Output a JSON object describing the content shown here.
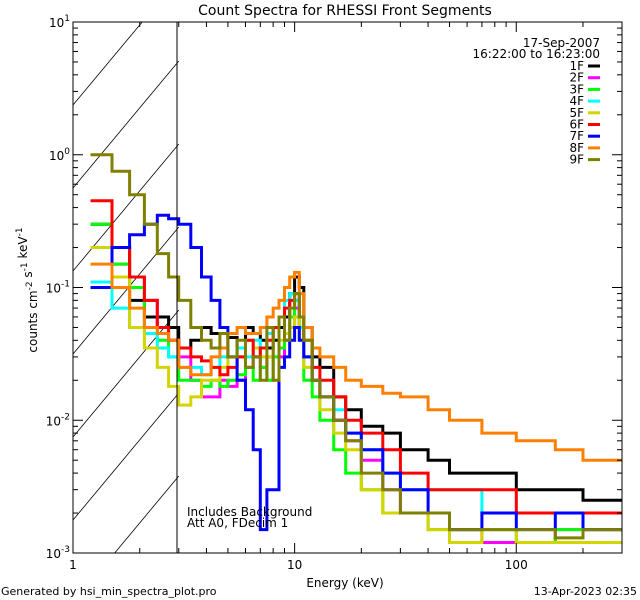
{
  "chart_data": {
    "type": "line",
    "title": "Count Spectra for RHESSI Front Segments",
    "xlabel": "Energy (keV)",
    "ylabel": "counts cm-2 s-1 keV-1",
    "xscale": "log",
    "yscale": "log",
    "xlim": [
      1,
      300
    ],
    "ylim": [
      0.001,
      10
    ],
    "x_tick_labels": [
      "1",
      "10",
      "100"
    ],
    "x_tick_values": [
      1,
      10,
      100
    ],
    "y_tick_values": [
      10,
      1,
      0.1,
      0.01,
      0.001
    ],
    "y_tick_labels": [
      {
        "base": "10",
        "exp": "1"
      },
      {
        "base": "10",
        "exp": "0"
      },
      {
        "base": "10",
        "exp": "-1"
      },
      {
        "base": "10",
        "exp": "-2"
      },
      {
        "base": "10",
        "exp": "-3"
      }
    ],
    "hatched_region_keV": [
      1,
      3
    ],
    "date": "17-Sep-2007",
    "time_range": "16:22:00 to 16:23:00",
    "annotations": [
      "Includes Background",
      "Att A0, FDecim 1"
    ],
    "legend_placement": "top-right",
    "energy_edges": [
      1.2,
      1.5,
      1.8,
      2.1,
      2.4,
      2.7,
      3.0,
      3.4,
      3.8,
      4.2,
      4.6,
      5.0,
      5.5,
      6.0,
      6.5,
      7.0,
      7.5,
      8.0,
      8.5,
      9.0,
      9.5,
      10.0,
      10.5,
      11,
      12,
      13,
      15,
      17,
      20,
      25,
      30,
      40,
      50,
      70,
      100,
      150,
      200,
      300
    ],
    "series": [
      {
        "name": "1F",
        "color": "#000000",
        "values": [
          0.3,
          0.2,
          0.08,
          0.06,
          0.06,
          0.05,
          0.035,
          0.04,
          0.05,
          0.045,
          0.045,
          0.042,
          0.035,
          0.05,
          0.045,
          0.04,
          0.035,
          0.04,
          0.05,
          0.06,
          0.09,
          0.12,
          0.1,
          0.05,
          0.03,
          0.025,
          0.015,
          0.012,
          0.009,
          0.008,
          0.006,
          0.005,
          0.004,
          0.004,
          0.003,
          0.003,
          0.0025
        ]
      },
      {
        "name": "2F",
        "color": "#ff00ff",
        "values": [
          0.2,
          0.15,
          0.12,
          0.08,
          0.05,
          0.04,
          0.03,
          0.02,
          0.015,
          0.015,
          0.02,
          0.018,
          0.02,
          0.025,
          0.03,
          0.025,
          0.03,
          0.03,
          0.03,
          0.04,
          0.05,
          0.07,
          0.05,
          0.03,
          0.02,
          0.015,
          0.01,
          0.007,
          0.005,
          0.003,
          0.002,
          0.002,
          0.0015,
          0.0012,
          0.0012,
          0.0015,
          0.0015
        ]
      },
      {
        "name": "3F",
        "color": "#00ff00",
        "values": [
          0.3,
          0.15,
          0.1,
          0.05,
          0.04,
          0.03,
          0.02,
          0.02,
          0.018,
          0.02,
          0.018,
          0.02,
          0.022,
          0.025,
          0.02,
          0.025,
          0.02,
          0.03,
          0.035,
          0.04,
          0.06,
          0.08,
          0.05,
          0.02,
          0.015,
          0.01,
          0.006,
          0.004,
          0.003,
          0.002,
          0.002,
          0.0015,
          0.0015,
          0.0015,
          0.0012,
          0.0015,
          0.0015
        ]
      },
      {
        "name": "4F",
        "color": "#00ffff",
        "values": [
          0.11,
          0.07,
          0.05,
          0.045,
          0.035,
          0.03,
          0.025,
          0.025,
          0.022,
          0.025,
          0.03,
          0.03,
          0.035,
          0.03,
          0.04,
          0.035,
          0.045,
          0.05,
          0.06,
          0.08,
          0.09,
          0.08,
          0.05,
          0.03,
          0.02,
          0.015,
          0.012,
          0.008,
          0.006,
          0.004,
          0.003,
          0.003,
          0.003,
          0.002,
          0.002,
          0.002,
          0.002
        ]
      },
      {
        "name": "5F",
        "color": "#d4d400",
        "values": [
          0.2,
          0.12,
          0.05,
          0.035,
          0.025,
          0.018,
          0.013,
          0.015,
          0.02,
          0.02,
          0.025,
          0.03,
          0.03,
          0.04,
          0.035,
          0.03,
          0.03,
          0.05,
          0.04,
          0.045,
          0.05,
          0.06,
          0.04,
          0.025,
          0.02,
          0.012,
          0.008,
          0.006,
          0.003,
          0.002,
          0.002,
          0.0015,
          0.0012,
          0.0015,
          0.0012,
          0.0012,
          0.0012
        ]
      },
      {
        "name": "6F",
        "color": "#ff0000",
        "values": [
          0.45,
          0.2,
          0.12,
          0.08,
          0.05,
          0.04,
          0.035,
          0.03,
          0.028,
          0.025,
          0.022,
          0.025,
          0.03,
          0.04,
          0.03,
          0.035,
          0.04,
          0.05,
          0.06,
          0.07,
          0.08,
          0.09,
          0.06,
          0.04,
          0.025,
          0.02,
          0.015,
          0.01,
          0.008,
          0.006,
          0.004,
          0.003,
          0.003,
          0.003,
          0.002,
          0.002,
          0.002
        ]
      },
      {
        "name": "7F",
        "color": "#0000ff",
        "values": [
          0.1,
          0.2,
          0.25,
          0.3,
          0.35,
          0.33,
          0.3,
          0.2,
          0.12,
          0.08,
          0.05,
          0.03,
          0.02,
          0.012,
          0.006,
          0.0015,
          0.003,
          0.003,
          0.025,
          0.03,
          0.04,
          0.05,
          0.04,
          0.03,
          0.02,
          0.015,
          0.01,
          0.008,
          0.006,
          0.004,
          0.003,
          0.002,
          0.0015,
          0.002,
          0.0015,
          0.002,
          0.0015
        ]
      },
      {
        "name": "8F",
        "color": "#ff8000",
        "values": [
          0.15,
          0.1,
          0.07,
          0.05,
          0.045,
          0.04,
          0.025,
          0.022,
          0.022,
          0.03,
          0.035,
          0.045,
          0.05,
          0.045,
          0.045,
          0.05,
          0.06,
          0.07,
          0.08,
          0.1,
          0.12,
          0.13,
          0.09,
          0.05,
          0.035,
          0.03,
          0.025,
          0.02,
          0.018,
          0.016,
          0.015,
          0.012,
          0.01,
          0.008,
          0.007,
          0.006,
          0.005
        ]
      },
      {
        "name": "9F",
        "color": "#808000",
        "values": [
          1.0,
          0.75,
          0.5,
          0.3,
          0.18,
          0.12,
          0.08,
          0.05,
          0.04,
          0.035,
          0.045,
          0.03,
          0.04,
          0.025,
          0.03,
          0.02,
          0.05,
          0.02,
          0.06,
          0.04,
          0.07,
          0.09,
          0.06,
          0.04,
          0.02,
          0.015,
          0.01,
          0.007,
          0.004,
          0.003,
          0.002,
          0.002,
          0.0015,
          0.0015,
          0.0015,
          0.0013,
          0.0015
        ]
      }
    ]
  },
  "footer": {
    "generated_by": "Generated by hsi_min_spectra_plot.pro",
    "timestamp": "13-Apr-2023 02:35"
  }
}
